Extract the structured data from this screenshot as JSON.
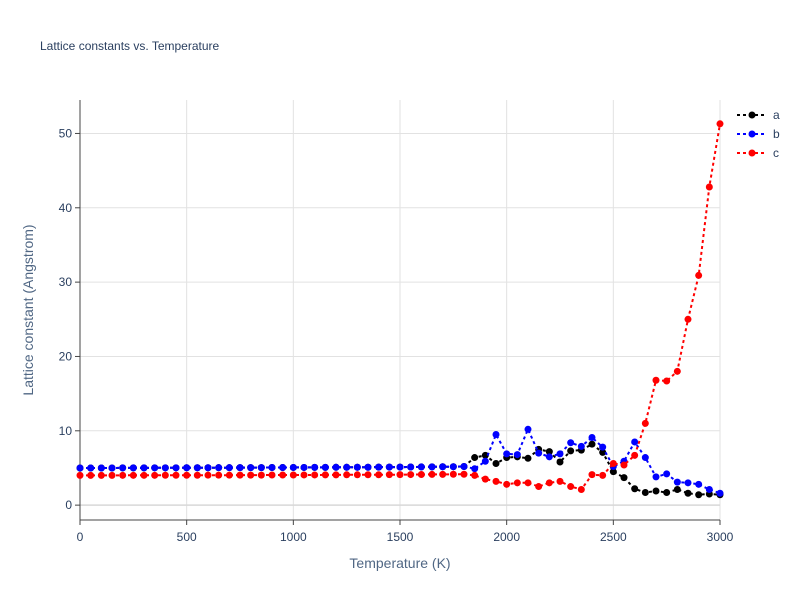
{
  "chart_data": {
    "type": "line",
    "title": "Lattice constants vs. Temperature",
    "xlabel": "Temperature (K)",
    "ylabel": "Lattice constant (Angstrom)",
    "xlim": [
      0,
      3000
    ],
    "ylim": [
      -2,
      54.5
    ],
    "xticks": [
      0,
      500,
      1000,
      1500,
      2000,
      2500,
      3000
    ],
    "yticks": [
      0,
      10,
      20,
      30,
      40,
      50
    ],
    "grid": true,
    "legend_position": "top-right",
    "x": [
      0,
      50,
      100,
      150,
      200,
      250,
      300,
      350,
      400,
      450,
      500,
      550,
      600,
      650,
      700,
      750,
      800,
      850,
      900,
      950,
      1000,
      1050,
      1100,
      1150,
      1200,
      1250,
      1300,
      1350,
      1400,
      1450,
      1500,
      1550,
      1600,
      1650,
      1700,
      1750,
      1800,
      1850,
      1900,
      1950,
      2000,
      2050,
      2100,
      2150,
      2200,
      2250,
      2300,
      2350,
      2400,
      2450,
      2500,
      2550,
      2600,
      2650,
      2700,
      2750,
      2800,
      2850,
      2900,
      2950,
      3000
    ],
    "series": [
      {
        "name": "a",
        "color": "#000000",
        "values": [
          5.0,
          5.0,
          5.0,
          5.0,
          5.01,
          5.01,
          5.01,
          5.02,
          5.02,
          5.02,
          5.03,
          5.03,
          5.03,
          5.04,
          5.04,
          5.05,
          5.05,
          5.05,
          5.06,
          5.06,
          5.07,
          5.07,
          5.08,
          5.08,
          5.09,
          5.09,
          5.1,
          5.1,
          5.11,
          5.12,
          5.12,
          5.13,
          5.14,
          5.15,
          5.16,
          5.17,
          5.2,
          6.4,
          6.7,
          5.6,
          6.4,
          6.5,
          6.3,
          7.5,
          7.2,
          5.8,
          7.3,
          7.4,
          8.2,
          7.1,
          4.5,
          3.7,
          2.2,
          1.7,
          1.9,
          1.7,
          2.1,
          1.6,
          1.4,
          1.5,
          1.4
        ]
      },
      {
        "name": "b",
        "color": "#0000ff",
        "values": [
          5.0,
          5.0,
          5.0,
          5.0,
          5.01,
          5.01,
          5.01,
          5.02,
          5.02,
          5.02,
          5.03,
          5.03,
          5.03,
          5.04,
          5.04,
          5.05,
          5.05,
          5.05,
          5.06,
          5.06,
          5.07,
          5.07,
          5.08,
          5.08,
          5.09,
          5.09,
          5.1,
          5.1,
          5.11,
          5.12,
          5.12,
          5.13,
          5.14,
          5.15,
          5.16,
          5.17,
          5.2,
          4.9,
          5.9,
          9.5,
          6.9,
          6.8,
          10.2,
          7.0,
          6.5,
          6.9,
          8.4,
          7.9,
          9.1,
          7.8,
          5.2,
          5.9,
          8.5,
          6.4,
          3.8,
          4.2,
          3.1,
          3.0,
          2.8,
          2.1,
          1.6
        ]
      },
      {
        "name": "c",
        "color": "#ff0000",
        "values": [
          4.0,
          4.0,
          4.0,
          4.0,
          4.01,
          4.01,
          4.01,
          4.01,
          4.02,
          4.02,
          4.02,
          4.02,
          4.03,
          4.03,
          4.03,
          4.04,
          4.04,
          4.04,
          4.05,
          4.05,
          4.05,
          4.06,
          4.06,
          4.07,
          4.07,
          4.08,
          4.08,
          4.09,
          4.09,
          4.1,
          4.1,
          4.11,
          4.12,
          4.13,
          4.14,
          4.15,
          4.15,
          4.0,
          3.5,
          3.2,
          2.8,
          3.0,
          3.0,
          2.5,
          3.0,
          3.2,
          2.5,
          2.1,
          4.1,
          4.0,
          5.6,
          5.4,
          6.7,
          11.0,
          16.8,
          16.7,
          18.0,
          25.0,
          30.9,
          42.8,
          51.3
        ]
      }
    ]
  }
}
